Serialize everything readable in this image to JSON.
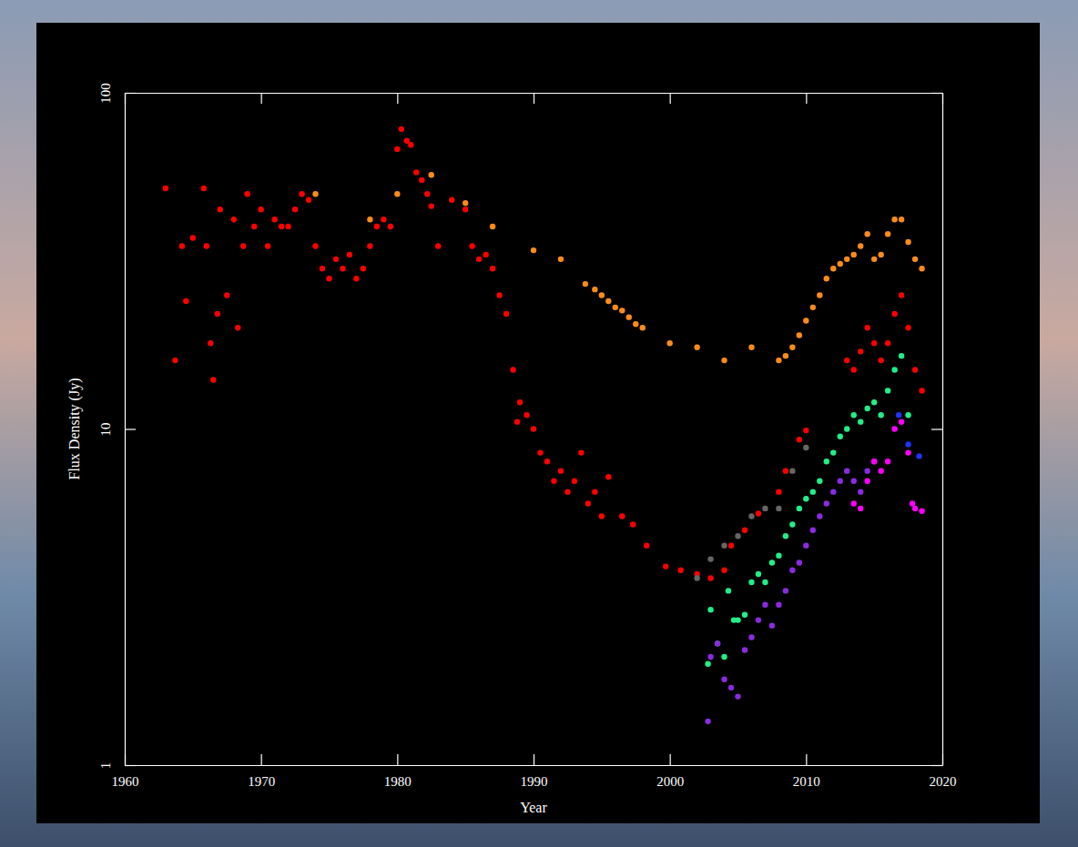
{
  "chart_data": {
    "type": "scatter",
    "xlabel": "Year",
    "ylabel": "Flux Density (Jy)",
    "log": "y",
    "xlim": [
      1960,
      2020
    ],
    "ylim": [
      1,
      100
    ],
    "xticks": [
      1960,
      1970,
      1980,
      1990,
      2000,
      2010,
      2020
    ],
    "yticks": [
      1,
      10,
      100
    ],
    "marker": "circle",
    "series": [
      {
        "color": "#ff0000",
        "x": [
          1963,
          1963.7,
          1964.2,
          1964.5,
          1965,
          1965.8,
          1966,
          1966.3,
          1966.5,
          1966.8,
          1967,
          1967.5,
          1968,
          1968.3,
          1968.7,
          1969,
          1969.5,
          1970,
          1970.5,
          1971,
          1971.5,
          1972,
          1972.5,
          1973,
          1973.5,
          1974,
          1974.5,
          1975,
          1975.5,
          1976,
          1976.5,
          1977,
          1977.5,
          1978,
          1978.5,
          1979,
          1979.5,
          1980,
          1980.3,
          1980.7,
          1981,
          1981.4,
          1981.8,
          1982.2,
          1982.5,
          1983,
          1984,
          1985,
          1985.5,
          1986,
          1986.5,
          1987,
          1987.5,
          1988,
          1988.5,
          1988.8,
          1989,
          1989.5,
          1990,
          1990.5,
          1991,
          1991.5,
          1992,
          1992.5,
          1993,
          1993.5,
          1994,
          1994.5,
          1995,
          1995.5,
          1996.5,
          1997.3,
          1998.3,
          1999.7,
          2000.8,
          2002,
          2003,
          2004,
          2004.5,
          2005.5,
          2006.5,
          2008,
          2008.5,
          2009.5,
          2010,
          2013,
          2013.5,
          2014,
          2014.5,
          2015,
          2015.5,
          2016,
          2016.5,
          2017,
          2017.5,
          2018,
          2018.5
        ],
        "values": [
          52,
          16,
          35,
          24,
          37,
          52,
          35,
          18,
          14,
          22,
          45,
          25,
          42,
          20,
          35,
          50,
          40,
          45,
          35,
          42,
          40,
          40,
          45,
          50,
          48,
          35,
          30,
          28,
          32,
          30,
          33,
          28,
          30,
          35,
          40,
          42,
          40,
          68,
          78,
          72,
          70,
          58,
          55,
          50,
          46,
          35,
          48,
          45,
          35,
          32,
          33,
          30,
          25,
          22,
          15,
          10.5,
          12,
          11,
          10,
          8.5,
          8,
          7,
          7.5,
          6.5,
          7,
          8.5,
          6,
          6.5,
          5.5,
          7.2,
          5.5,
          5.2,
          4.5,
          3.9,
          3.8,
          3.7,
          3.6,
          3.8,
          4.5,
          5,
          5.6,
          6.5,
          7.5,
          9.3,
          9.9,
          16,
          15,
          17,
          20,
          18,
          16,
          18,
          22,
          25,
          20,
          15,
          13
        ]
      },
      {
        "color": "#ff8c1a",
        "x": [
          1974,
          1978,
          1980,
          1982.5,
          1985,
          1987,
          1990,
          1992,
          1993.8,
          1994.5,
          1995,
          1995.5,
          1996,
          1996.5,
          1997,
          1997.5,
          1998,
          2000,
          2002,
          2004,
          2006,
          2008,
          2008.5,
          2009,
          2009.5,
          2010,
          2010.5,
          2011,
          2011.5,
          2012,
          2012.5,
          2013,
          2013.5,
          2014,
          2014.5,
          2015,
          2015.5,
          2016,
          2016.5,
          2017,
          2017.5,
          2018,
          2018.5
        ],
        "values": [
          50,
          42,
          50,
          57,
          47,
          40,
          34,
          32,
          27,
          26,
          25,
          24,
          23,
          22.5,
          21.5,
          20.5,
          20,
          18,
          17.5,
          16,
          17.5,
          16,
          16.5,
          17.5,
          19,
          21,
          23,
          25,
          28,
          30,
          31,
          32,
          33,
          35,
          38,
          32,
          33,
          38,
          42,
          42,
          36,
          32,
          30
        ]
      },
      {
        "color": "#666666",
        "x": [
          2002,
          2003,
          2004,
          2005,
          2006,
          2007,
          2008,
          2009,
          2010
        ],
        "values": [
          3.6,
          4.1,
          4.5,
          4.8,
          5.5,
          5.8,
          5.8,
          7.5,
          8.8
        ]
      },
      {
        "color": "#22ee88",
        "x": [
          2002.8,
          2003,
          2003.5,
          2004,
          2004.3,
          2004.7,
          2005,
          2005.5,
          2006,
          2006.5,
          2007,
          2007.5,
          2008,
          2008.5,
          2009,
          2009.5,
          2010,
          2010.5,
          2011,
          2011.5,
          2012,
          2012.5,
          2013,
          2013.5,
          2014,
          2014.5,
          2015,
          2015.5,
          2016,
          2016.5,
          2017,
          2017.5
        ],
        "values": [
          2.0,
          2.9,
          2.3,
          2.1,
          3.3,
          2.7,
          2.7,
          2.8,
          3.5,
          3.7,
          3.5,
          4.0,
          4.2,
          4.8,
          5.2,
          5.8,
          6.2,
          6.5,
          7,
          8,
          8.5,
          9.5,
          10,
          11,
          10.5,
          11.5,
          12,
          11,
          13,
          15,
          16.5,
          11
        ]
      },
      {
        "color": "#8a2be2",
        "x": [
          2002.8,
          2003,
          2003.5,
          2004,
          2004.5,
          2005,
          2005.5,
          2006,
          2006.5,
          2007,
          2007.5,
          2008,
          2008.5,
          2009,
          2009.5,
          2010,
          2010.5,
          2011,
          2011.5,
          2012,
          2012.5,
          2013,
          2013.5,
          2014,
          2014.5,
          2015
        ],
        "values": [
          1.35,
          2.1,
          2.3,
          1.8,
          1.7,
          1.6,
          2.2,
          2.4,
          2.7,
          3,
          2.6,
          3,
          3.3,
          3.8,
          4,
          4.5,
          5,
          5.5,
          6,
          6.5,
          7,
          7.5,
          7,
          6.5,
          7.5,
          8
        ]
      },
      {
        "color": "#ff00ff",
        "x": [
          2013.5,
          2014,
          2014.5,
          2015,
          2015.5,
          2016,
          2016.5,
          2017,
          2017.5,
          2017.8,
          2018,
          2018.5
        ],
        "values": [
          6,
          5.8,
          7,
          8,
          7.5,
          8,
          10,
          10.5,
          8.5,
          6,
          5.8,
          5.7
        ]
      },
      {
        "color": "#2233ff",
        "x": [
          2016.8,
          2017.5,
          2018.3
        ],
        "values": [
          11,
          9,
          8.3
        ]
      }
    ]
  }
}
